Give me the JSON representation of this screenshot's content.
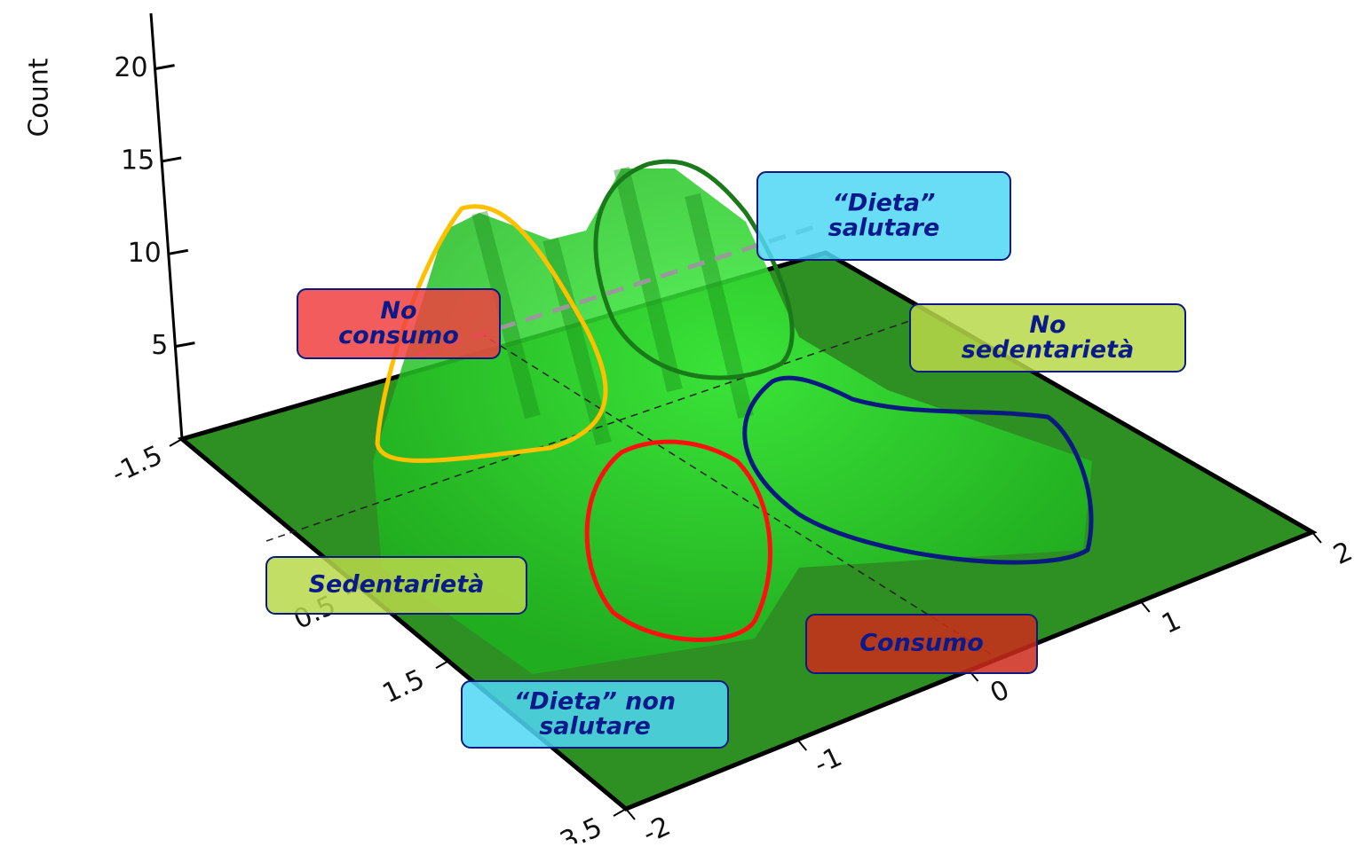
{
  "chart_data": {
    "type": "surface3d",
    "zlabel": "Count",
    "zlim": [
      0,
      23
    ],
    "zticks": [
      5,
      10,
      15,
      20
    ],
    "xticks": [
      -1.5,
      0.5,
      1.5,
      3.5
    ],
    "yticks": [
      2,
      1,
      0,
      -1,
      -2
    ],
    "annotations": [
      "“Dieta” salutare",
      "No consumo",
      "No sedentarietà",
      "Sedentarietà",
      "Consumo",
      "“Dieta” non salutare"
    ]
  }
}
